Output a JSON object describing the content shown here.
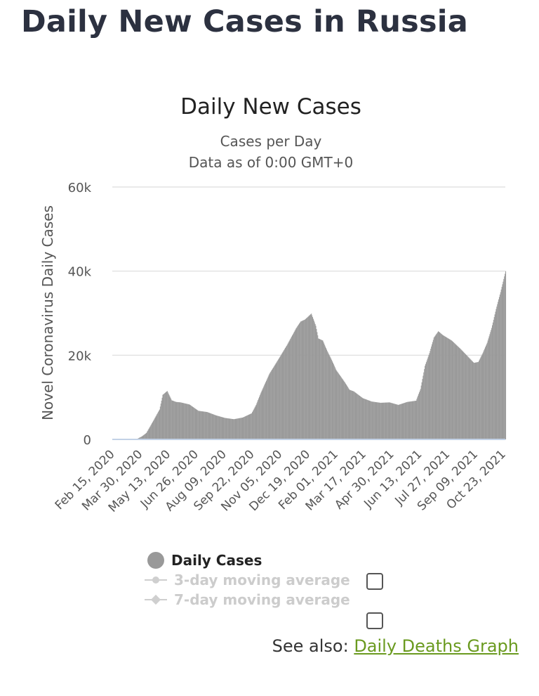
{
  "page": {
    "title": "Daily New Cases in Russia",
    "see_also_label": "See also:",
    "see_also_link": "Daily Deaths Graph"
  },
  "colors": {
    "bar": "#9a9a9a",
    "gridline": "#e3e3e3",
    "baseline": "#c2d1e6",
    "link": "#6a9a1f"
  },
  "legend": {
    "daily": "Daily Cases",
    "ma3": "3-day moving average",
    "ma7": "7-day moving average"
  },
  "chart_data": {
    "type": "bar",
    "title": "Daily New Cases",
    "subtitle": "Cases per Day",
    "subtitle2": "Data as of 0:00 GMT+0",
    "ylabel": "Novel Coronavirus Daily Cases",
    "xlabel": "",
    "ylim": [
      0,
      60000
    ],
    "y_ticks": [
      0,
      20000,
      40000,
      60000
    ],
    "y_tick_labels": [
      "0",
      "20k",
      "40k",
      "60k"
    ],
    "grid": true,
    "legend_position": "bottom",
    "x_start": "2020-02-15",
    "x_end": "2021-10-26",
    "x_tick_labels": [
      "Feb 15, 2020",
      "Mar 30, 2020",
      "May 13, 2020",
      "Jun 26, 2020",
      "Aug 09, 2020",
      "Sep 22, 2020",
      "Nov 05, 2020",
      "Dec 19, 2020",
      "Feb 01, 2021",
      "Mar 17, 2021",
      "Apr 30, 2021",
      "Jun 13, 2021",
      "Jul 27, 2021",
      "Sep 09, 2021",
      "Oct 23, 2021"
    ],
    "series": [
      {
        "name": "Daily Cases",
        "points": [
          [
            "2020-02-15",
            0
          ],
          [
            "2020-03-15",
            0
          ],
          [
            "2020-03-25",
            150
          ],
          [
            "2020-04-01",
            700
          ],
          [
            "2020-04-08",
            1500
          ],
          [
            "2020-04-15",
            3300
          ],
          [
            "2020-04-22",
            5200
          ],
          [
            "2020-04-29",
            7100
          ],
          [
            "2020-05-04",
            10600
          ],
          [
            "2020-05-11",
            11500
          ],
          [
            "2020-05-18",
            9300
          ],
          [
            "2020-05-25",
            8900
          ],
          [
            "2020-06-01",
            8800
          ],
          [
            "2020-06-15",
            8300
          ],
          [
            "2020-06-29",
            6800
          ],
          [
            "2020-07-13",
            6500
          ],
          [
            "2020-07-27",
            5700
          ],
          [
            "2020-08-10",
            5100
          ],
          [
            "2020-08-24",
            4800
          ],
          [
            "2020-09-07",
            5200
          ],
          [
            "2020-09-21",
            6200
          ],
          [
            "2020-09-28",
            8200
          ],
          [
            "2020-10-05",
            10900
          ],
          [
            "2020-10-19",
            15600
          ],
          [
            "2020-11-02",
            19000
          ],
          [
            "2020-11-16",
            22500
          ],
          [
            "2020-11-30",
            26400
          ],
          [
            "2020-12-07",
            28000
          ],
          [
            "2020-12-14",
            28500
          ],
          [
            "2020-12-24",
            29900
          ],
          [
            "2020-12-31",
            27000
          ],
          [
            "2021-01-04",
            24000
          ],
          [
            "2021-01-11",
            23500
          ],
          [
            "2021-01-18",
            21000
          ],
          [
            "2021-01-25",
            18900
          ],
          [
            "2021-02-01",
            16500
          ],
          [
            "2021-02-08",
            15000
          ],
          [
            "2021-02-15",
            13500
          ],
          [
            "2021-02-22",
            11800
          ],
          [
            "2021-03-01",
            11400
          ],
          [
            "2021-03-15",
            9800
          ],
          [
            "2021-03-29",
            9000
          ],
          [
            "2021-04-12",
            8700
          ],
          [
            "2021-04-26",
            8800
          ],
          [
            "2021-05-10",
            8200
          ],
          [
            "2021-05-24",
            8900
          ],
          [
            "2021-06-07",
            9200
          ],
          [
            "2021-06-14",
            12000
          ],
          [
            "2021-06-21",
            17500
          ],
          [
            "2021-06-28",
            20500
          ],
          [
            "2021-07-05",
            24200
          ],
          [
            "2021-07-12",
            25700
          ],
          [
            "2021-07-19",
            24800
          ],
          [
            "2021-08-02",
            23500
          ],
          [
            "2021-08-16",
            21500
          ],
          [
            "2021-08-30",
            19300
          ],
          [
            "2021-09-06",
            18200
          ],
          [
            "2021-09-13",
            18400
          ],
          [
            "2021-09-20",
            20500
          ],
          [
            "2021-09-27",
            23000
          ],
          [
            "2021-10-04",
            26500
          ],
          [
            "2021-10-11",
            31000
          ],
          [
            "2021-10-18",
            35000
          ],
          [
            "2021-10-26",
            40000
          ]
        ]
      }
    ]
  }
}
